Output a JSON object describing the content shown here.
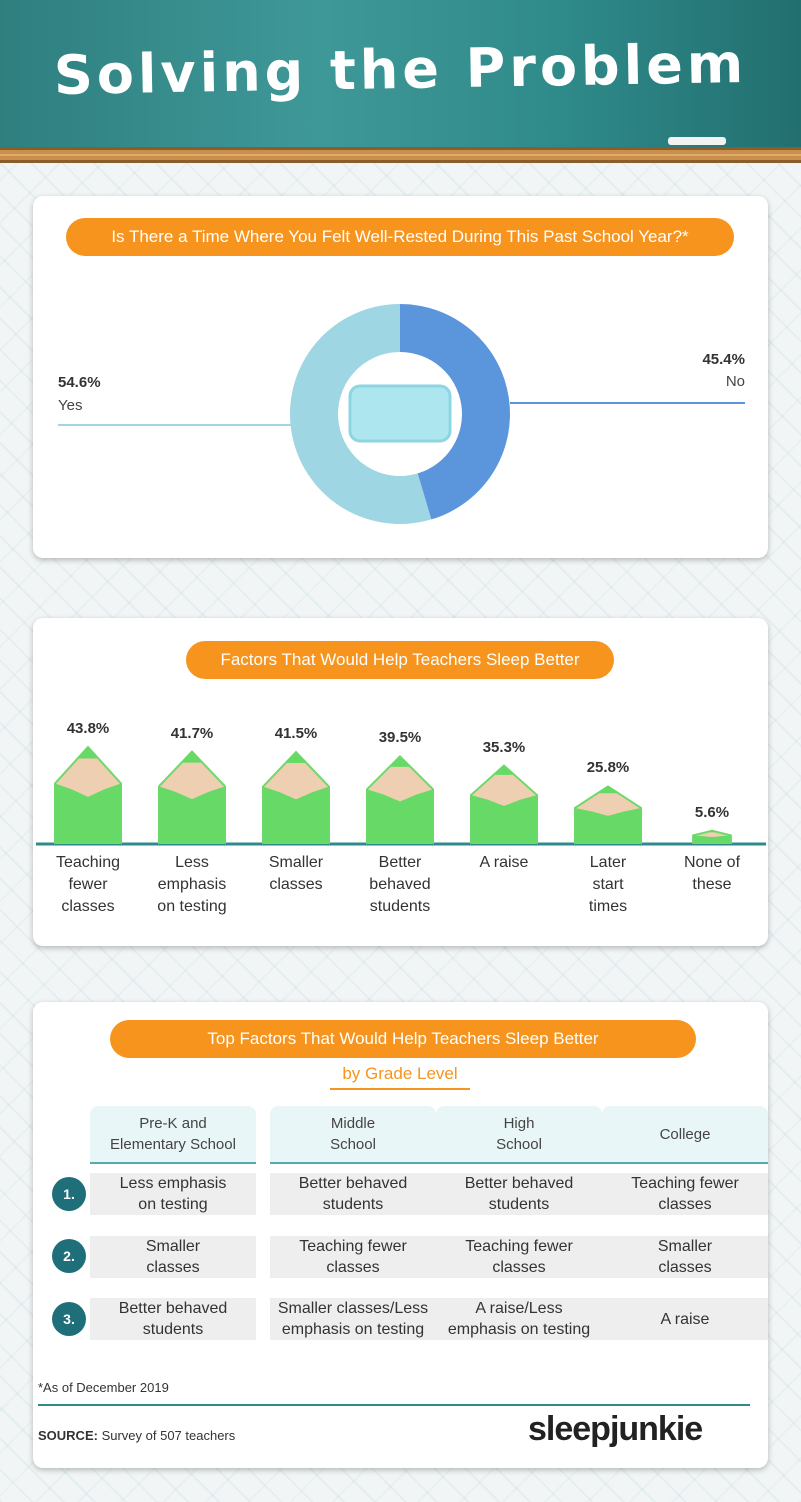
{
  "header": {
    "title": "Solving the Problem"
  },
  "donut": {
    "question": "Is There a Time Where You Felt Well-Rested During This Past School Year?*",
    "yes_value": "54.6%",
    "yes_label": "Yes",
    "no_value": "45.4%",
    "no_label": "No",
    "yes_color": "#9fd6e3",
    "no_color": "#5b96dd"
  },
  "bars": {
    "title": "Factors That Would Help Teachers Sleep Better",
    "items": [
      {
        "value": "43.8%",
        "line1": "Teaching",
        "line2": "fewer",
        "line3": "classes"
      },
      {
        "value": "41.7%",
        "line1": "Less",
        "line2": "emphasis",
        "line3": "on testing"
      },
      {
        "value": "41.5%",
        "line1": "Smaller",
        "line2": "classes",
        "line3": ""
      },
      {
        "value": "39.5%",
        "line1": "Better",
        "line2": "behaved",
        "line3": "students"
      },
      {
        "value": "35.3%",
        "line1": "A raise",
        "line2": "",
        "line3": ""
      },
      {
        "value": "25.8%",
        "line1": "Later",
        "line2": "start",
        "line3": "times"
      },
      {
        "value": "5.6%",
        "line1": "None of",
        "line2": "these",
        "line3": ""
      }
    ]
  },
  "chart_data": [
    {
      "type": "pie",
      "title": "Is There a Time Where You Felt Well-Rested During This Past School Year?*",
      "categories": [
        "Yes",
        "No"
      ],
      "values": [
        54.6,
        45.4
      ]
    },
    {
      "type": "bar",
      "title": "Factors That Would Help Teachers Sleep Better",
      "categories": [
        "Teaching fewer classes",
        "Less emphasis on testing",
        "Smaller classes",
        "Better behaved students",
        "A raise",
        "Later start times",
        "None of these"
      ],
      "values": [
        43.8,
        41.7,
        41.5,
        39.5,
        35.3,
        25.8,
        5.6
      ]
    }
  ],
  "grade_table": {
    "title": "Top Factors That Would Help Teachers Sleep Better",
    "subtitle": "by Grade Level",
    "columns": [
      {
        "line1": "Pre-K and",
        "line2": "Elementary School"
      },
      {
        "line1": "Middle",
        "line2": "School"
      },
      {
        "line1": "High",
        "line2": "School"
      },
      {
        "line1": "College",
        "line2": ""
      }
    ],
    "ranks": [
      "1.",
      "2.",
      "3."
    ],
    "rows": [
      [
        {
          "line1": "Less emphasis",
          "line2": "on testing"
        },
        {
          "line1": "Better behaved",
          "line2": "students"
        },
        {
          "line1": "Better behaved",
          "line2": "students"
        },
        {
          "line1": "Teaching fewer",
          "line2": "classes"
        }
      ],
      [
        {
          "line1": "Smaller",
          "line2": "classes"
        },
        {
          "line1": "Teaching fewer",
          "line2": "classes"
        },
        {
          "line1": "Teaching fewer",
          "line2": "classes"
        },
        {
          "line1": "Smaller",
          "line2": "classes"
        }
      ],
      [
        {
          "line1": "Better behaved",
          "line2": "students"
        },
        {
          "line1": "Smaller classes/Less",
          "line2": "emphasis on testing"
        },
        {
          "line1": "A raise/Less",
          "line2": "emphasis on testing"
        },
        {
          "line1": "A raise",
          "line2": ""
        }
      ]
    ]
  },
  "footer": {
    "note": "*As of December 2019",
    "source_label": "SOURCE:",
    "source_text": " Survey of 507 teachers",
    "brand": "sleepjunkie"
  }
}
